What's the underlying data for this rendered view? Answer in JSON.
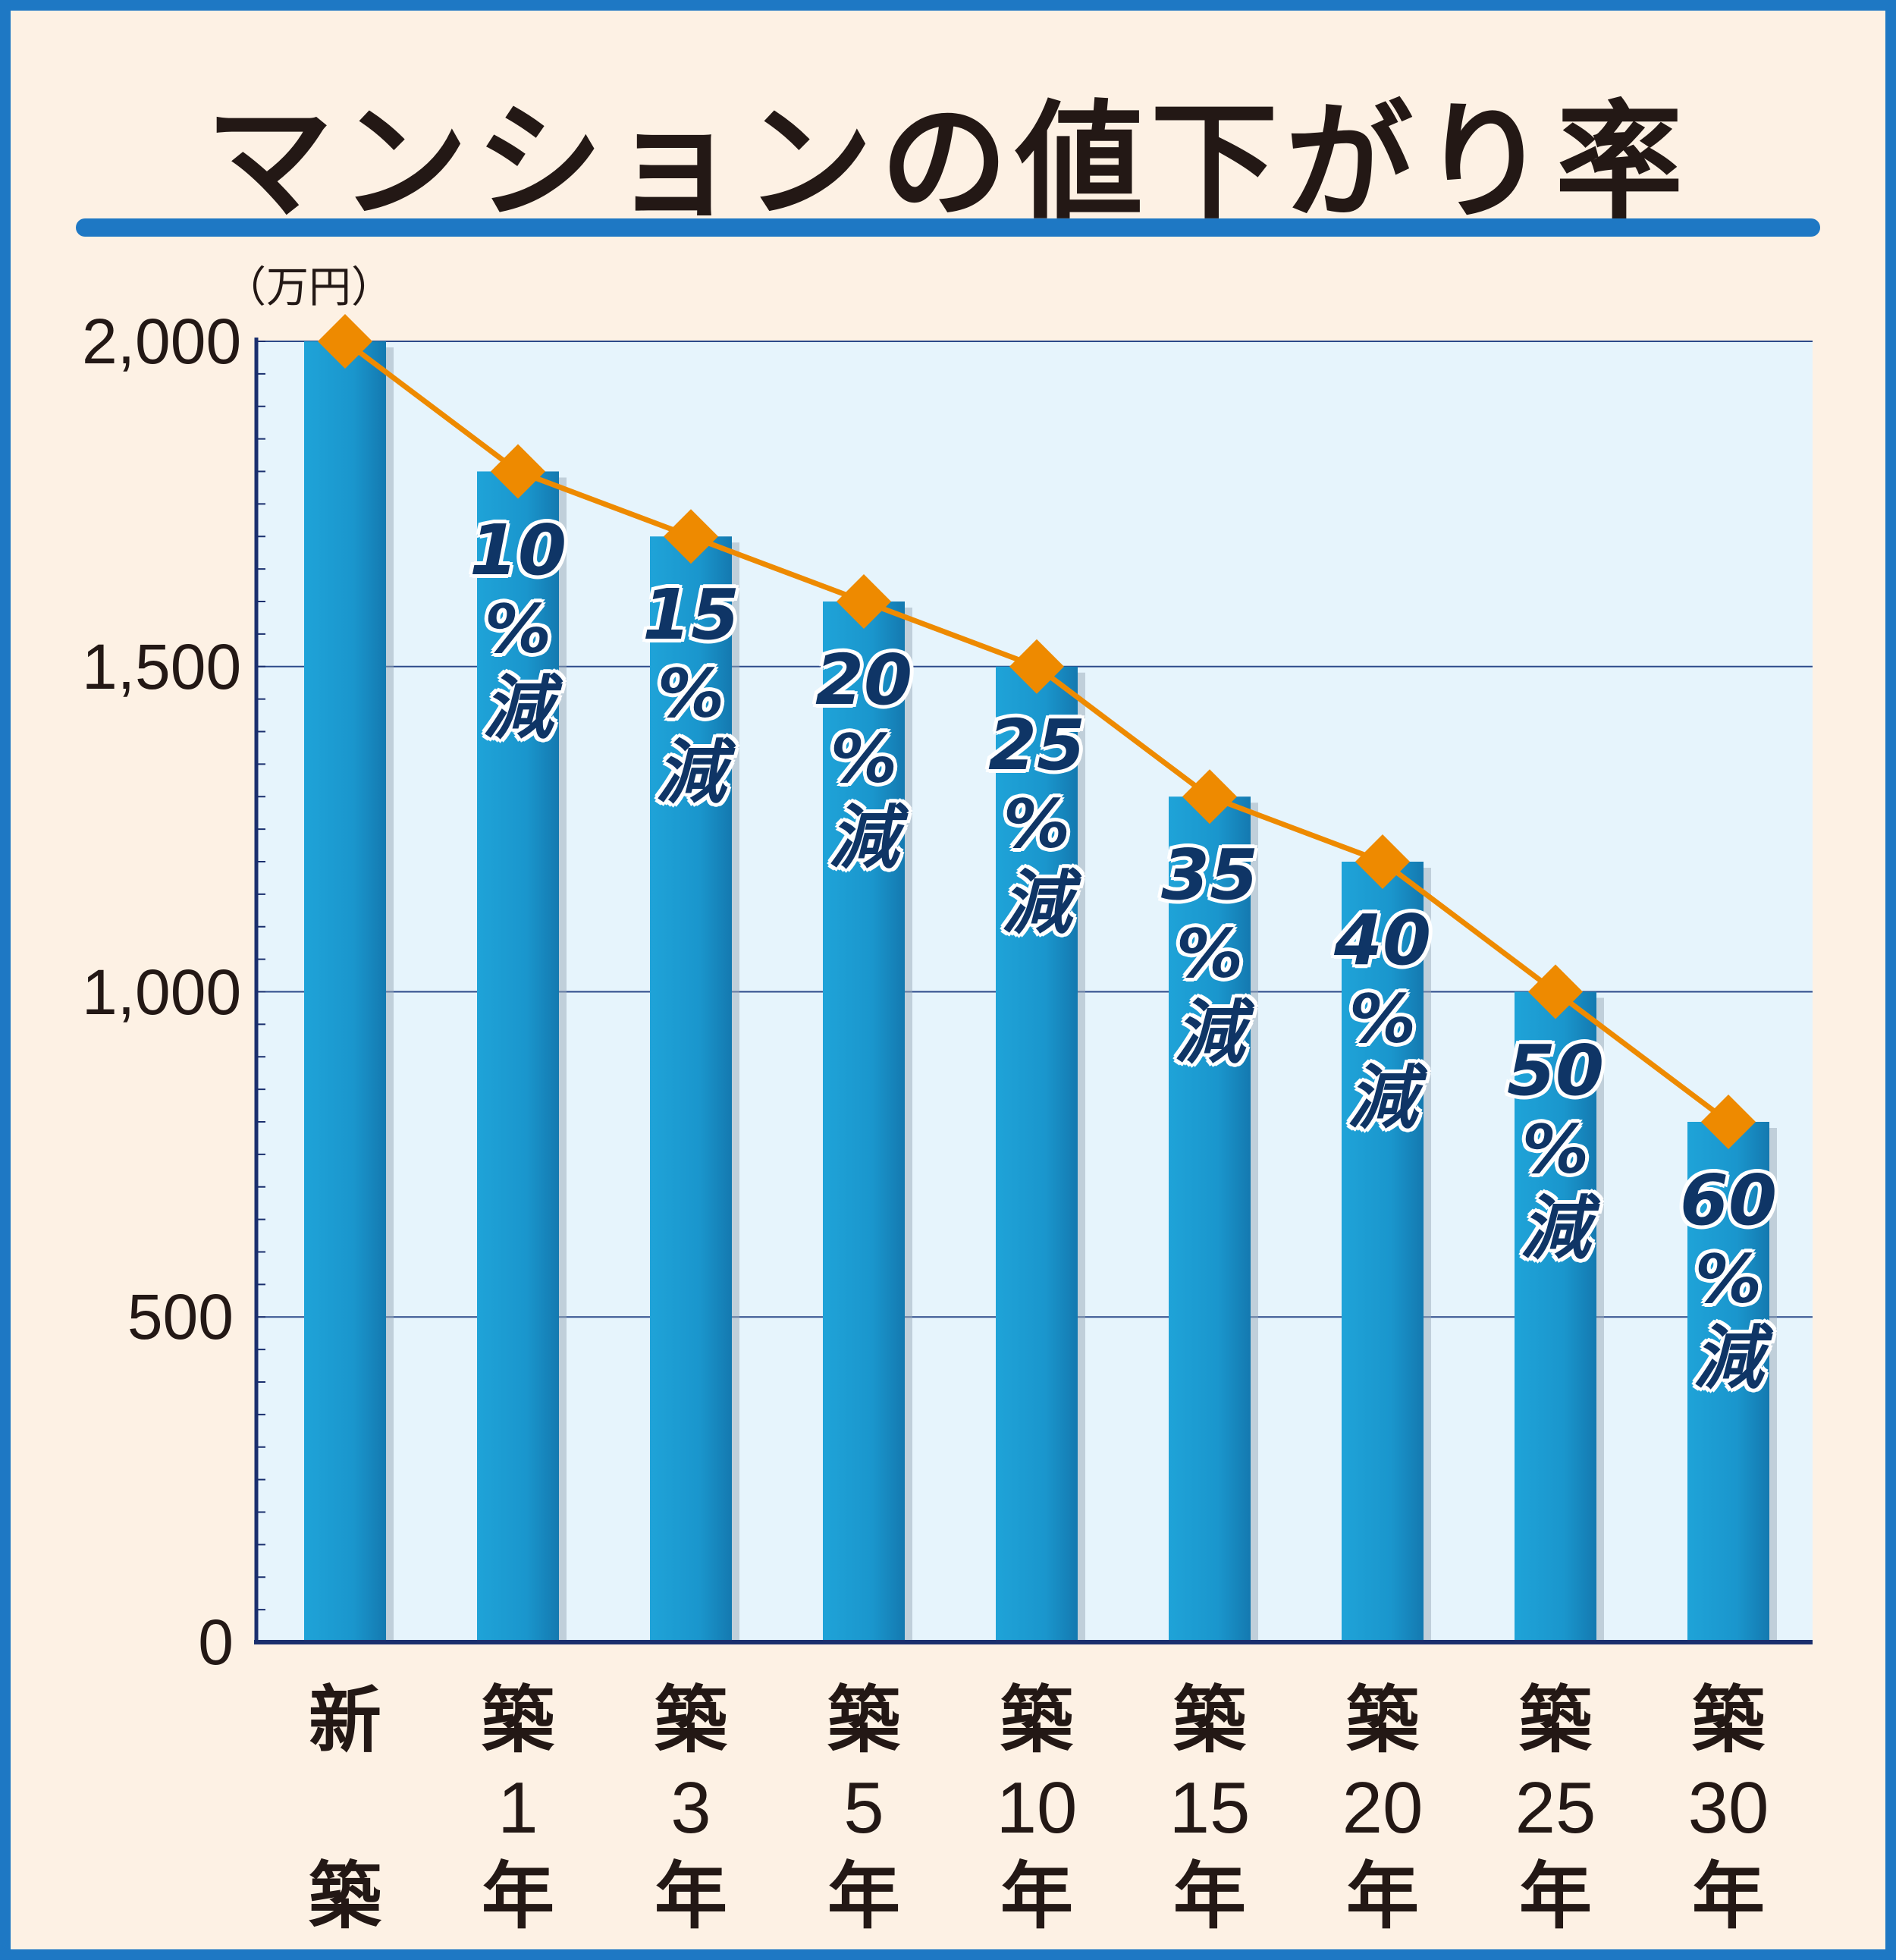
{
  "title": "マンションの値下がり率",
  "unit_label": "（万円）",
  "chart_data": {
    "type": "bar",
    "title": "マンションの値下がり率",
    "ylabel": "（万円）",
    "xlabel": "",
    "ylim": [
      0,
      2000
    ],
    "yticks": [
      0,
      500,
      1000,
      1500,
      2000
    ],
    "ytick_labels": [
      "0",
      "500",
      "1,000",
      "1,500",
      "2,000"
    ],
    "categories": [
      "新築",
      "築1年",
      "築3年",
      "築5年",
      "築10年",
      "築15年",
      "築20年",
      "築25年",
      "築30年"
    ],
    "category_lines": [
      [
        "新",
        "",
        "築"
      ],
      [
        "築",
        "1",
        "年"
      ],
      [
        "築",
        "3",
        "年"
      ],
      [
        "築",
        "5",
        "年"
      ],
      [
        "築",
        "10",
        "年"
      ],
      [
        "築",
        "15",
        "年"
      ],
      [
        "築",
        "20",
        "年"
      ],
      [
        "築",
        "25",
        "年"
      ],
      [
        "築",
        "30",
        "年"
      ]
    ],
    "values": [
      2000,
      1800,
      1700,
      1600,
      1500,
      1300,
      1200,
      1000,
      800
    ],
    "bar_labels": [
      "",
      "10",
      "15",
      "20",
      "25",
      "35",
      "40",
      "50",
      "60"
    ],
    "bar_label_suffix": [
      "%",
      "減"
    ],
    "grid": true,
    "line_overlay": true,
    "colors": {
      "bar": "#1e9ad2",
      "line": "#ee8a00",
      "plot_bg": "#e6f4fc",
      "axis": "#1a2f6e",
      "grid": "#2c4a8a"
    }
  }
}
